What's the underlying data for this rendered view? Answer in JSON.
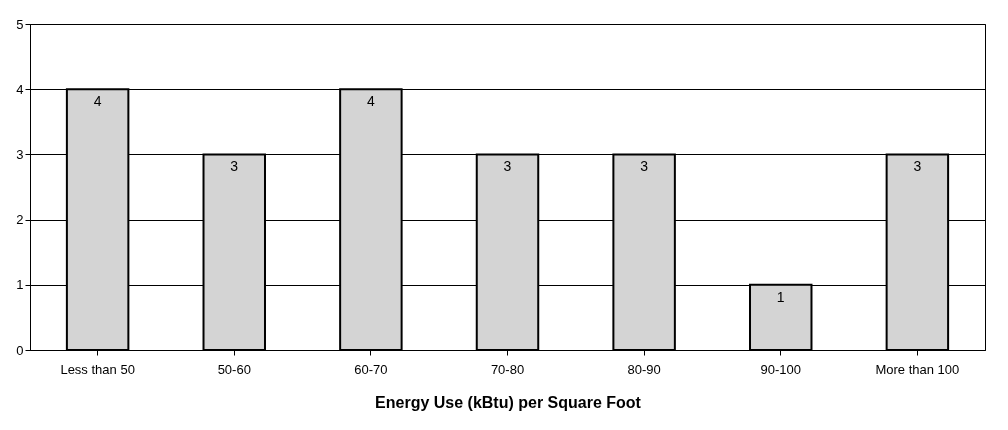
{
  "chart_data": {
    "type": "bar",
    "xlabel": "Energy Use (kBtu) per Square Foot",
    "categories": [
      "Less than 50",
      "50-60",
      "60-70",
      "70-80",
      "80-90",
      "90-100",
      "More than 100"
    ],
    "values": [
      4,
      3,
      4,
      3,
      3,
      1,
      3
    ],
    "color": "#d4d4d4",
    "ylim": [
      0,
      5
    ],
    "yticks": [
      0,
      1,
      2,
      3,
      4,
      5
    ],
    "grid": "y",
    "data_labels": true
  }
}
